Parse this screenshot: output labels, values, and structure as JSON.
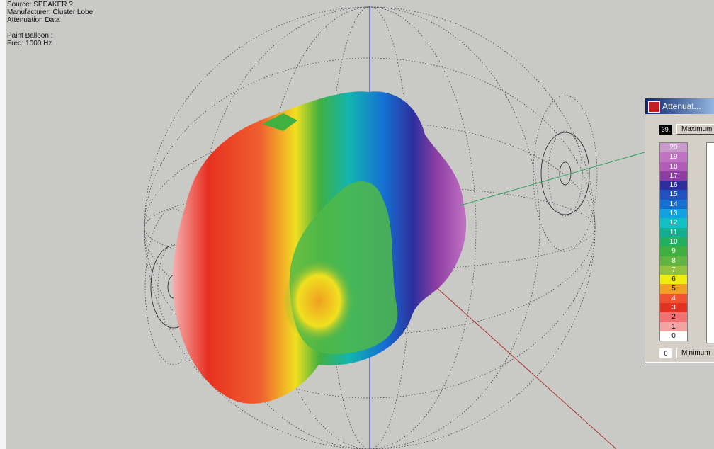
{
  "overlay": {
    "lines": [
      "Source: SPEAKER ?",
      "Manufacturer: Cluster Lobe",
      "Attenuation Data",
      "Paint Balloon :",
      "Freq: 1000 Hz"
    ]
  },
  "window": {
    "title": "Attenuat...",
    "max_value": "39.",
    "max_button": "Maximum",
    "min_value": "0",
    "min_button": "Minimum",
    "scale": [
      {
        "label": "20",
        "color": "#c99bcb"
      },
      {
        "label": "19",
        "color": "#c173c3"
      },
      {
        "label": "18",
        "color": "#b25cba"
      },
      {
        "label": "17",
        "color": "#8e3ea3"
      },
      {
        "label": "16",
        "color": "#2d2f9e"
      },
      {
        "label": "15",
        "color": "#2251c0"
      },
      {
        "label": "14",
        "color": "#1570d2"
      },
      {
        "label": "13",
        "color": "#12a2e0"
      },
      {
        "label": "12",
        "color": "#12bfc2"
      },
      {
        "label": "11",
        "color": "#12b090"
      },
      {
        "label": "10",
        "color": "#22b060"
      },
      {
        "label": "9",
        "color": "#3fb040"
      },
      {
        "label": "8",
        "color": "#62b442"
      },
      {
        "label": "7",
        "color": "#93c240"
      },
      {
        "label": "6",
        "color": "#f0ee10"
      },
      {
        "label": "5",
        "color": "#f0a025"
      },
      {
        "label": "4",
        "color": "#f05232"
      },
      {
        "label": "3",
        "color": "#e33222"
      },
      {
        "label": "2",
        "color": "#f07272"
      },
      {
        "label": "1",
        "color": "#f2a4a4"
      },
      {
        "label": "0",
        "color": "#ffffff"
      }
    ]
  }
}
